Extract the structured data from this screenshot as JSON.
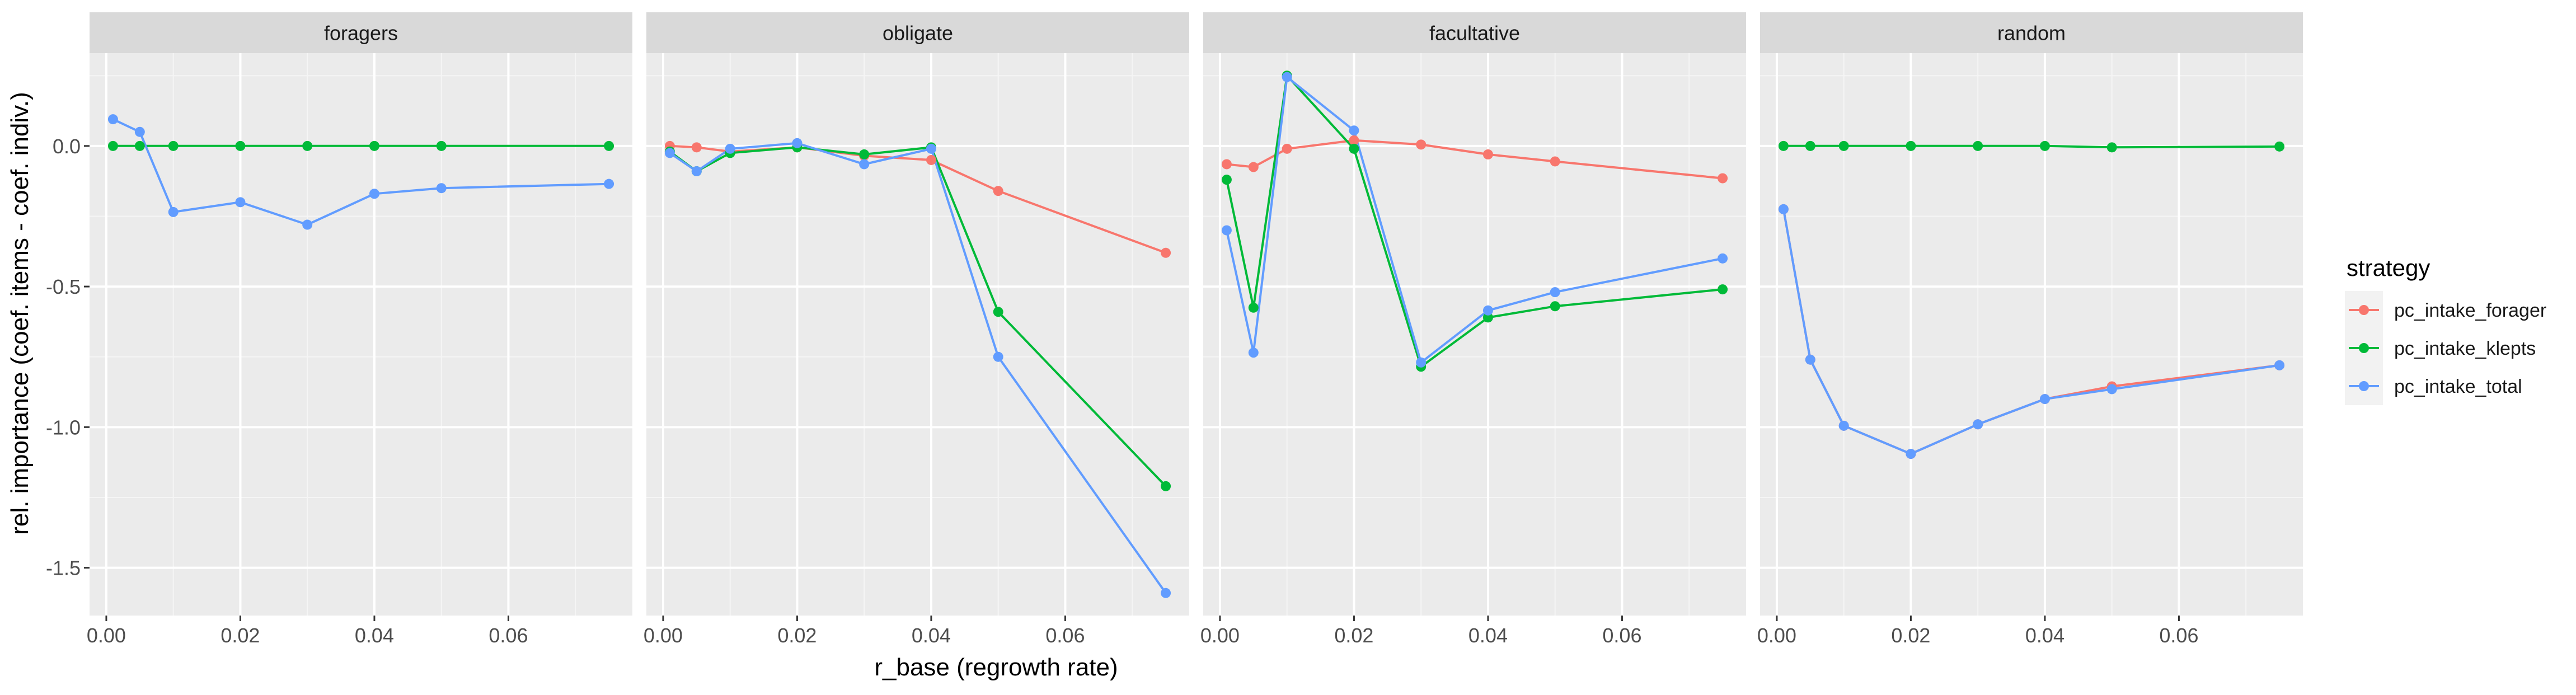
{
  "chart_data": {
    "type": "line",
    "xlabel": "r_base (regrowth rate)",
    "ylabel": "rel. importance (coef. items - coef. indiv.)",
    "xlim": [
      -0.0025,
      0.0785
    ],
    "ylim": [
      -1.67,
      0.33
    ],
    "x_ticks": [
      0.0,
      0.02,
      0.04,
      0.06
    ],
    "x_tick_labels": [
      "0.00",
      "0.02",
      "0.04",
      "0.06"
    ],
    "y_ticks": [
      0.0,
      -0.5,
      -1.0,
      -1.5
    ],
    "y_tick_labels": [
      "0.0",
      "-0.5",
      "-1.0",
      "-1.5"
    ],
    "legend": {
      "title": "strategy",
      "position": "right",
      "entries": [
        {
          "label": "pc_intake_forager",
          "color": "#F8766D"
        },
        {
          "label": "pc_intake_klepts",
          "color": "#00BA38"
        },
        {
          "label": "pc_intake_total",
          "color": "#619CFF"
        }
      ]
    },
    "panels": [
      {
        "title": "foragers",
        "x": [
          0.001,
          0.005,
          0.01,
          0.02,
          0.03,
          0.04,
          0.05,
          0.075
        ],
        "series": [
          {
            "name": "pc_intake_klepts",
            "values": [
              0.0,
              0.0,
              0.0,
              0.0,
              0.0,
              0.0,
              0.0,
              0.0
            ]
          },
          {
            "name": "pc_intake_total",
            "values": [
              0.095,
              0.05,
              -0.235,
              -0.2,
              -0.28,
              -0.17,
              -0.15,
              -0.135
            ]
          }
        ]
      },
      {
        "title": "obligate",
        "x": [
          0.001,
          0.005,
          0.01,
          0.02,
          0.03,
          0.04,
          0.05,
          0.075
        ],
        "series": [
          {
            "name": "pc_intake_forager",
            "values": [
              0.0,
              -0.005,
              -0.02,
              -0.005,
              -0.035,
              -0.05,
              -0.16,
              -0.38
            ]
          },
          {
            "name": "pc_intake_klepts",
            "values": [
              -0.02,
              -0.09,
              -0.025,
              -0.005,
              -0.03,
              -0.005,
              -0.59,
              -1.21
            ]
          },
          {
            "name": "pc_intake_total",
            "values": [
              -0.025,
              -0.09,
              -0.01,
              0.01,
              -0.065,
              -0.01,
              -0.75,
              -1.59
            ]
          }
        ]
      },
      {
        "title": "facultative",
        "x": [
          0.001,
          0.005,
          0.01,
          0.02,
          0.03,
          0.04,
          0.05,
          0.075
        ],
        "series": [
          {
            "name": "pc_intake_forager",
            "values": [
              -0.065,
              -0.075,
              -0.01,
              0.02,
              0.005,
              -0.03,
              -0.055,
              -0.115
            ]
          },
          {
            "name": "pc_intake_klepts",
            "values": [
              -0.12,
              -0.575,
              0.25,
              -0.01,
              -0.785,
              -0.61,
              -0.57,
              -0.51
            ]
          },
          {
            "name": "pc_intake_total",
            "values": [
              -0.3,
              -0.735,
              0.245,
              0.055,
              -0.77,
              -0.585,
              -0.52,
              -0.4
            ]
          }
        ]
      },
      {
        "title": "random",
        "x": [
          0.001,
          0.005,
          0.01,
          0.02,
          0.03,
          0.04,
          0.05,
          0.075
        ],
        "series": [
          {
            "name": "pc_intake_forager",
            "values": [
              -0.225,
              -0.76,
              -0.995,
              -1.095,
              -0.99,
              -0.9,
              -0.855,
              -0.78
            ]
          },
          {
            "name": "pc_intake_klepts",
            "values": [
              0.0,
              0.0,
              0.0,
              0.0,
              0.0,
              0.0,
              -0.005,
              -0.002
            ]
          },
          {
            "name": "pc_intake_total",
            "values": [
              -0.225,
              -0.76,
              -0.995,
              -1.095,
              -0.99,
              -0.9,
              -0.865,
              -0.78
            ]
          }
        ]
      }
    ]
  }
}
